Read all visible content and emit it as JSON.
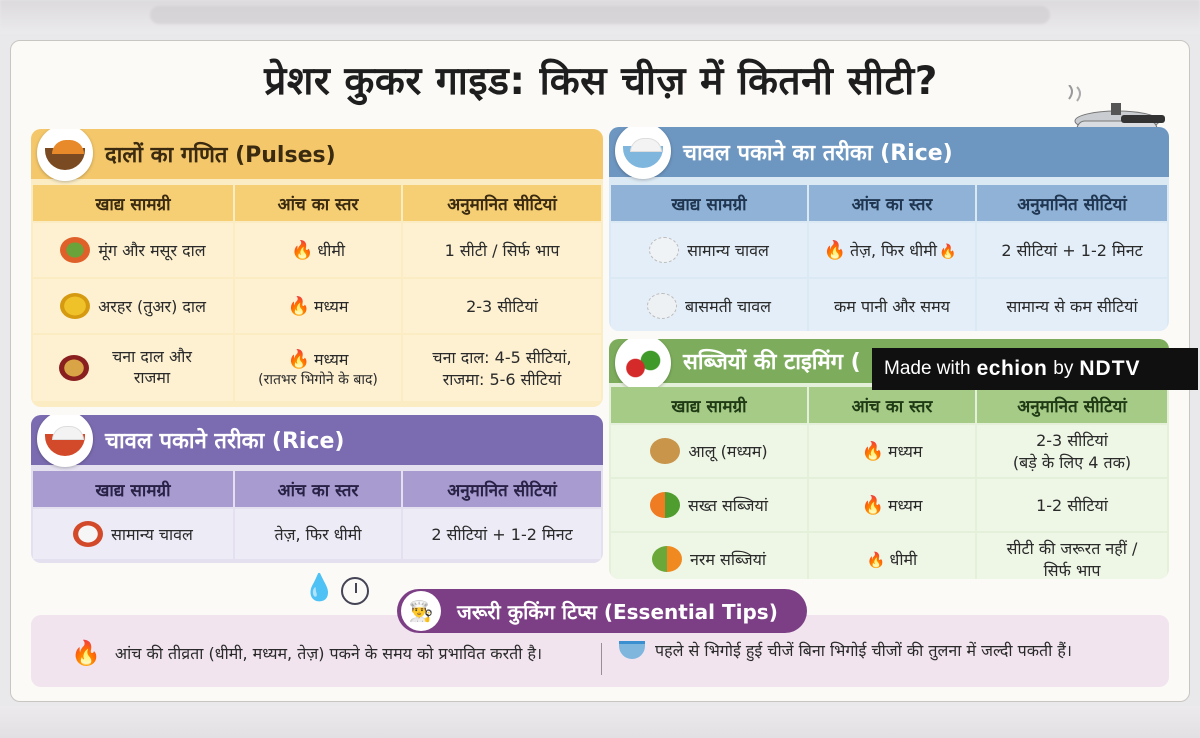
{
  "title": "प्रेशर कुकर गाइड: किस चीज़ में कितनी सीटी?",
  "columns": [
    "खाद्य सामग्री",
    "आंच का स्तर",
    "अनुमानित सीटियां"
  ],
  "pulses": {
    "heading": "दालों का गणित (Pulses)",
    "rows": [
      {
        "item": "मूंग और मसूर दाल",
        "heat": "धीमी",
        "whistles": "1 सीटी / सिर्फ भाप"
      },
      {
        "item": "अरहर (तुअर) दाल",
        "heat": "मध्यम",
        "whistles": "2-3 सीटियां"
      },
      {
        "item": "चना दाल और राजमा",
        "heat": "मध्यम",
        "heat_note": "(रातभर भिगोने के बाद)",
        "whistles": "चना दाल: 4-5 सीटियां,",
        "whistles2": "राजमा: 5-6 सीटियां"
      }
    ]
  },
  "rice_left": {
    "heading": "चावल पकाने तरीका (Rice)",
    "rows": [
      {
        "item": "सामान्य चावल",
        "heat": "तेज़, फिर धीमी",
        "whistles": "2 सीटियां + 1-2 मिनट"
      }
    ]
  },
  "rice_right": {
    "heading": "चावल पकाने का तरीका (Rice)",
    "rows": [
      {
        "item": "सामान्य चावल",
        "heat": "तेज़, फिर धीमी",
        "whistles": "2 सीटियां + 1-2 मिनट"
      },
      {
        "item": "बासमती चावल",
        "heat": "कम पानी और समय",
        "whistles": "सामान्य से कम सीटियां"
      }
    ]
  },
  "vegetables": {
    "heading": "सब्जियों की टाइमिंग (",
    "rows": [
      {
        "item": "आलू (मध्यम)",
        "heat": "मध्यम",
        "whistles": "2-3 सीटियां",
        "whistles2": "(बड़े के लिए 4 तक)"
      },
      {
        "item": "सख्त सब्जियां",
        "heat": "मध्यम",
        "whistles": "1-2 सीटियां"
      },
      {
        "item": "नरम सब्जियां",
        "heat": "धीमी",
        "whistles": "सीटी की जरूरत नहीं /",
        "whistles2": "सिर्फ भाप"
      }
    ]
  },
  "tips": {
    "heading": "जरूरी कुकिंग टिप्स (Essential Tips)",
    "tip1": "आंच की तीव्रता (धीमी, मध्यम, तेज़) पकने के समय को प्रभावित करती है।",
    "tip2": "पहले से भिगोई हुई चीजें बिना भिगोई चीजों की तुलना में जल्दी पकती हैं।"
  },
  "watermark": {
    "made_with": "Made with",
    "brand": "echion",
    "by": "by",
    "partner": "NDTV"
  },
  "icons": {
    "flame": "🔥",
    "chef": "chef-hat-icon",
    "drops": "water-drops-icon",
    "clock": "clock-icon"
  }
}
